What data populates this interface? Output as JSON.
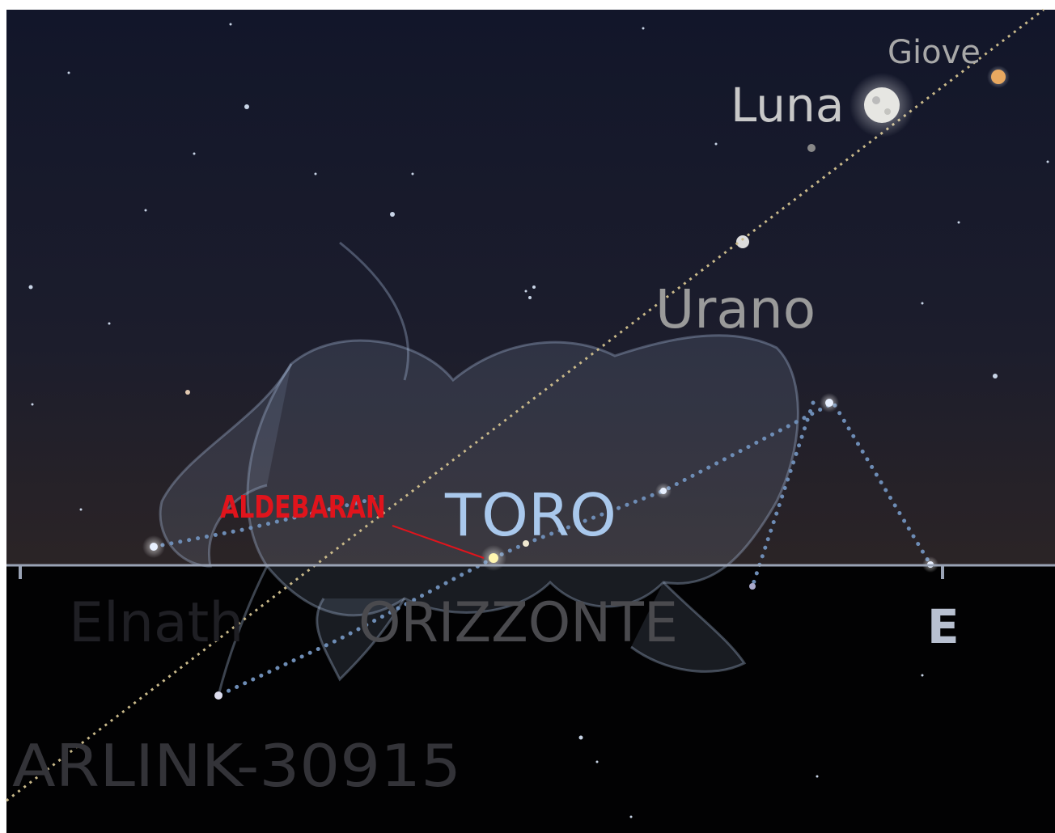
{
  "labels": {
    "giove": "Giove",
    "luna": "Luna",
    "urano": "Urano",
    "aldebaran": "ALDEBARAN",
    "toro": "TORO",
    "elnath": "Elnath",
    "horizon": "ORIZZONTE",
    "direction": "E",
    "satellite": "ARLINK-30915"
  }
}
